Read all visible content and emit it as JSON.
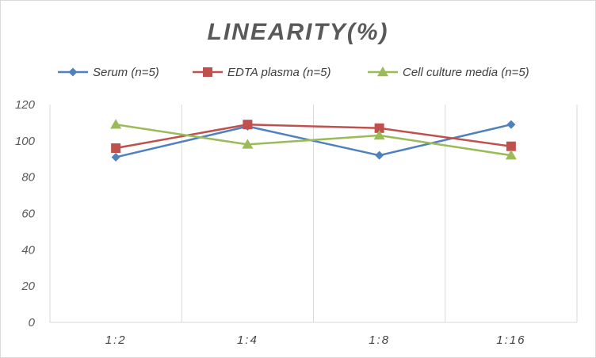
{
  "chart_data": {
    "type": "line",
    "title": "LINEARITY(%)",
    "xlabel": "",
    "ylabel": "",
    "categories": [
      "1:2",
      "1:4",
      "1:8",
      "1:16"
    ],
    "ylim": [
      0,
      120
    ],
    "yticks": [
      0,
      20,
      40,
      60,
      80,
      100,
      120
    ],
    "grid": "vertical",
    "legend_position": "top",
    "series": [
      {
        "name": "Serum (n=5)",
        "values": [
          91,
          108,
          92,
          109
        ],
        "color": "#4f81bd",
        "marker": "diamond"
      },
      {
        "name": "EDTA plasma (n=5)",
        "values": [
          96,
          109,
          107,
          97
        ],
        "color": "#c0504d",
        "marker": "square"
      },
      {
        "name": "Cell culture media (n=5)",
        "values": [
          109,
          98,
          103,
          92
        ],
        "color": "#9bbb59",
        "marker": "triangle"
      }
    ]
  }
}
